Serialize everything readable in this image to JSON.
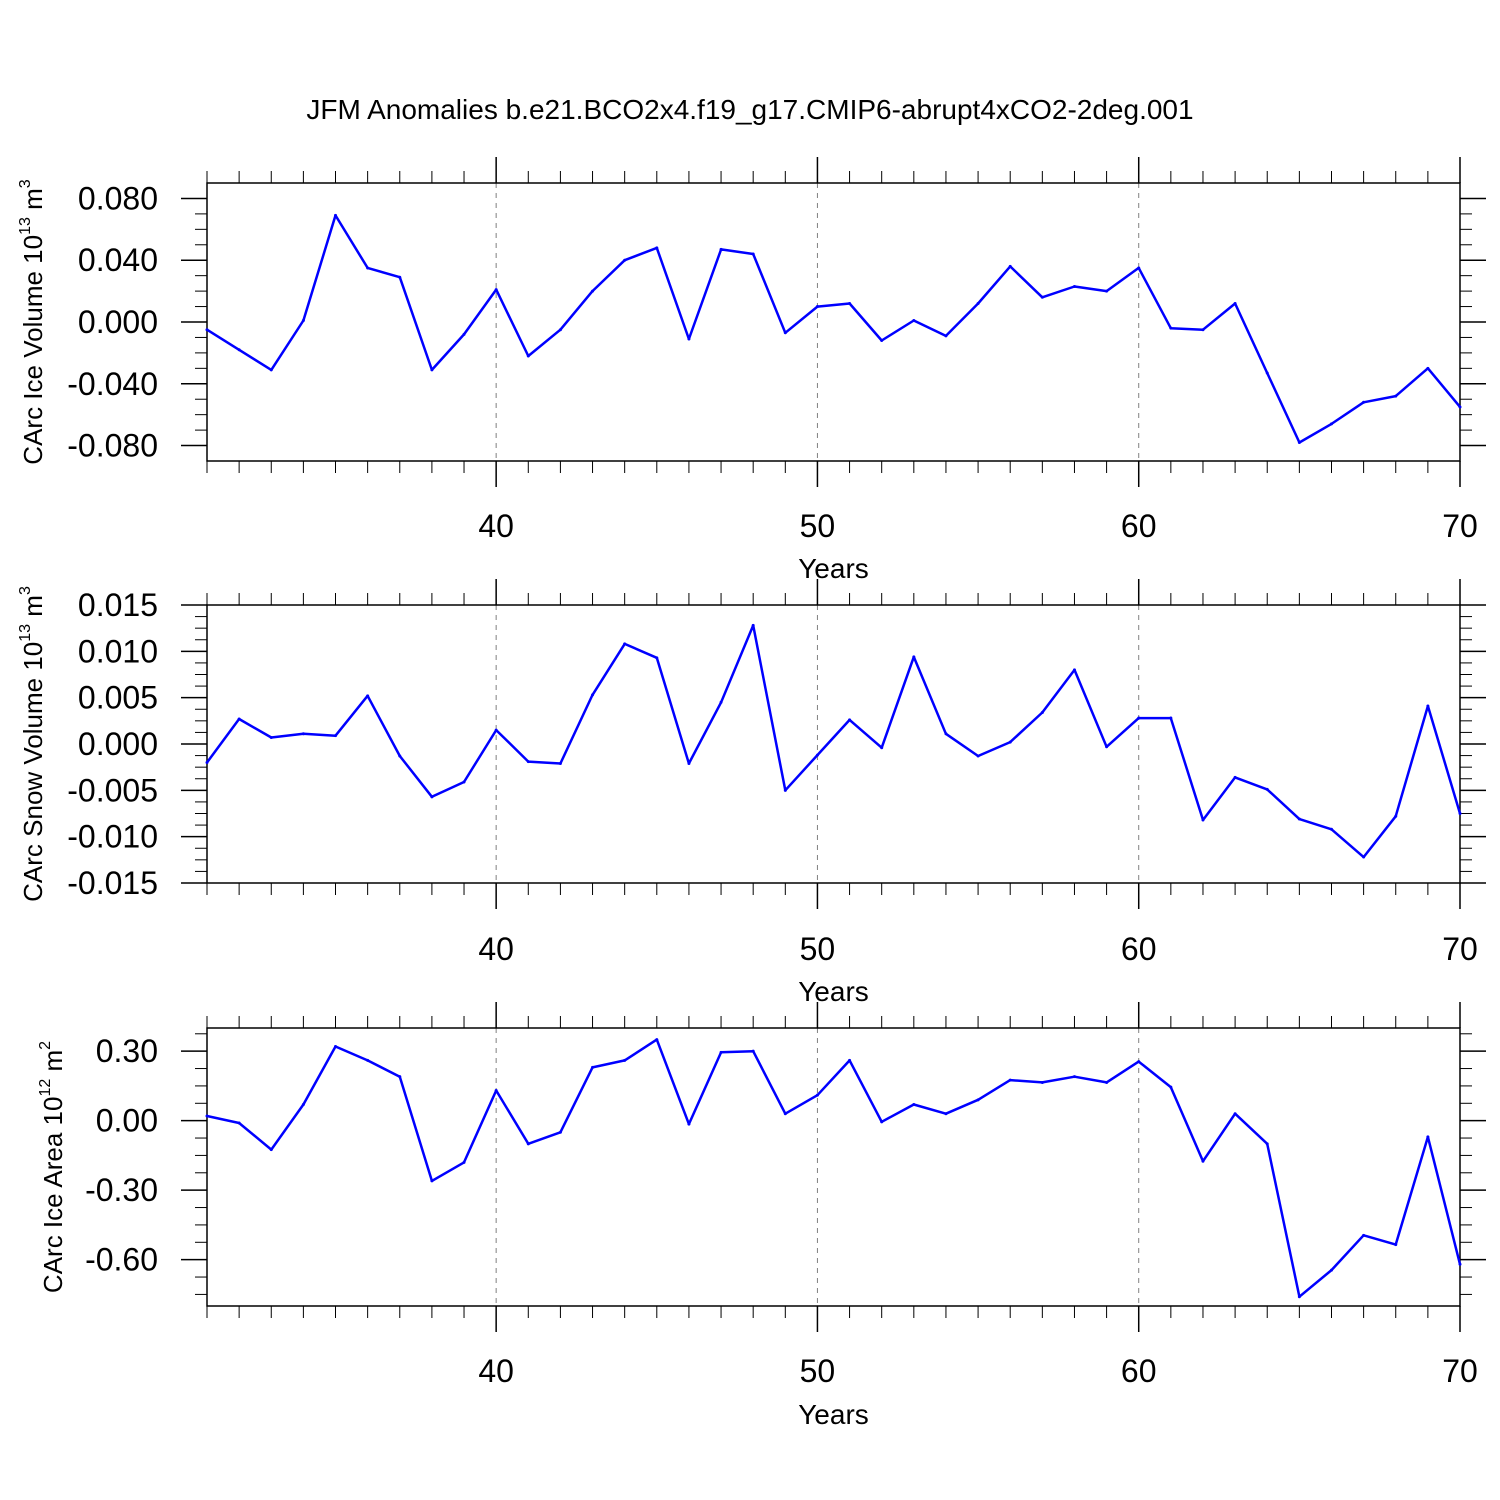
{
  "figure_title": "JFM Anomalies b.e21.BCO2x4.f19_g17.CMIP6-abrupt4xCO2-2deg.001",
  "colors": {
    "line": "#0000ff",
    "axes": "#000000",
    "grid": "#808080",
    "background": "#ffffff"
  },
  "chart_data": [
    {
      "type": "line",
      "name": "ice-volume",
      "ylabel_main": "CArc Ice Volume 10",
      "ylabel_exp": "13",
      "ylabel_unit": " m",
      "ylabel_unit_exp": "3",
      "xlabel": "Years",
      "xlim": [
        31,
        70
      ],
      "ylim": [
        -0.09,
        0.09
      ],
      "xticks": [
        40,
        50,
        60,
        70
      ],
      "xtick_labels": [
        "40",
        "50",
        "60",
        "70"
      ],
      "yticks": [
        0.08,
        0.04,
        0.0,
        -0.04,
        -0.08
      ],
      "ytick_labels": [
        "0.080",
        "0.040",
        "0.000",
        "-0.040",
        "-0.080"
      ],
      "x": [
        31,
        32,
        33,
        34,
        35,
        36,
        37,
        38,
        39,
        40,
        41,
        42,
        43,
        44,
        45,
        46,
        47,
        48,
        49,
        50,
        51,
        52,
        53,
        54,
        55,
        56,
        57,
        58,
        59,
        60,
        61,
        62,
        63,
        64,
        65,
        66,
        67,
        68,
        69,
        70
      ],
      "values": [
        -0.005,
        -0.018,
        -0.031,
        0.001,
        0.069,
        0.035,
        0.029,
        -0.031,
        -0.008,
        0.021,
        -0.022,
        -0.005,
        0.02,
        0.04,
        0.048,
        -0.011,
        0.047,
        0.044,
        -0.007,
        0.01,
        0.012,
        -0.012,
        0.001,
        -0.009,
        0.012,
        0.036,
        0.016,
        0.023,
        0.02,
        0.035,
        -0.004,
        -0.005,
        0.012,
        -0.033,
        -0.078,
        -0.066,
        -0.052,
        -0.048,
        -0.03,
        -0.055
      ]
    },
    {
      "type": "line",
      "name": "snow-volume",
      "ylabel_main": "CArc Snow Volume 10",
      "ylabel_exp": "13",
      "ylabel_unit": " m",
      "ylabel_unit_exp": "3",
      "xlabel": "Years",
      "xlim": [
        31,
        70
      ],
      "ylim": [
        -0.015,
        0.015
      ],
      "xticks": [
        40,
        50,
        60,
        70
      ],
      "xtick_labels": [
        "40",
        "50",
        "60",
        "70"
      ],
      "yticks": [
        0.015,
        0.01,
        0.005,
        0.0,
        -0.005,
        -0.01,
        -0.015
      ],
      "ytick_labels": [
        "0.015",
        "0.010",
        "0.005",
        "0.000",
        "-0.005",
        "-0.010",
        "-0.015"
      ],
      "x": [
        31,
        32,
        33,
        34,
        35,
        36,
        37,
        38,
        39,
        40,
        41,
        42,
        43,
        44,
        45,
        46,
        47,
        48,
        49,
        50,
        51,
        52,
        53,
        54,
        55,
        56,
        57,
        58,
        59,
        60,
        61,
        62,
        63,
        64,
        65,
        66,
        67,
        68,
        69,
        70
      ],
      "values": [
        -0.002,
        0.0027,
        0.0007,
        0.0011,
        0.0009,
        0.0052,
        -0.0013,
        -0.0057,
        -0.0041,
        0.0015,
        -0.0019,
        -0.0021,
        0.0053,
        0.0108,
        0.0093,
        -0.0021,
        0.0045,
        0.0128,
        -0.005,
        -0.0012,
        0.0026,
        -0.0004,
        0.0094,
        0.0011,
        -0.0013,
        0.0002,
        0.0034,
        0.008,
        -0.0003,
        0.0028,
        0.0028,
        -0.0082,
        -0.0036,
        -0.0049,
        -0.0081,
        -0.0092,
        -0.0122,
        -0.0078,
        0.0041,
        -0.0075
      ]
    },
    {
      "type": "line",
      "name": "ice-area",
      "ylabel_main": "CArc Ice Area 10",
      "ylabel_exp": "12",
      "ylabel_unit": " m",
      "ylabel_unit_exp": "2",
      "xlabel": "Years",
      "xlim": [
        31,
        70
      ],
      "ylim": [
        -0.8,
        0.4
      ],
      "xticks": [
        40,
        50,
        60,
        70
      ],
      "xtick_labels": [
        "40",
        "50",
        "60",
        "70"
      ],
      "yticks": [
        0.3,
        0.0,
        -0.3,
        -0.6
      ],
      "ytick_labels": [
        "0.30",
        "0.00",
        "-0.30",
        "-0.60"
      ],
      "x": [
        31,
        32,
        33,
        34,
        35,
        36,
        37,
        38,
        39,
        40,
        41,
        42,
        43,
        44,
        45,
        46,
        47,
        48,
        49,
        50,
        51,
        52,
        53,
        54,
        55,
        56,
        57,
        58,
        59,
        60,
        61,
        62,
        63,
        64,
        65,
        66,
        67,
        68,
        69,
        70
      ],
      "values": [
        0.02,
        -0.01,
        -0.125,
        0.07,
        0.32,
        0.26,
        0.19,
        -0.26,
        -0.18,
        0.13,
        -0.1,
        -0.05,
        0.23,
        0.26,
        0.35,
        -0.015,
        0.295,
        0.3,
        0.03,
        0.11,
        0.26,
        -0.005,
        0.07,
        0.03,
        0.09,
        0.175,
        0.165,
        0.19,
        0.165,
        0.255,
        0.145,
        -0.175,
        0.03,
        -0.1,
        -0.76,
        -0.645,
        -0.495,
        -0.535,
        -0.07,
        -0.62
      ]
    }
  ]
}
